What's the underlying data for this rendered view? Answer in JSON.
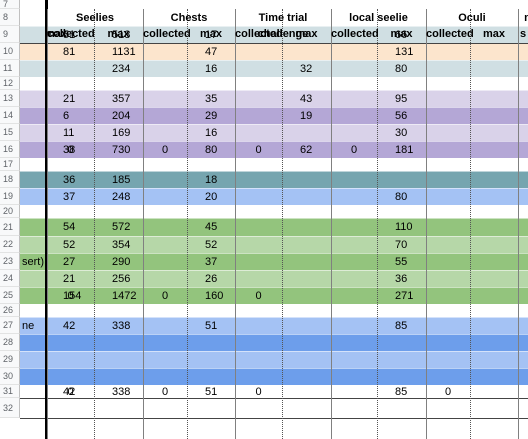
{
  "headers": {
    "groups": [
      "Seelies",
      "Chests",
      "Time trial challenge",
      "local seelie",
      "Oculi",
      "m"
    ],
    "sub": [
      "max",
      "collected",
      "max",
      "collected",
      "max",
      "collected",
      "max",
      "collected",
      "max",
      "collected",
      "max",
      "s"
    ]
  },
  "rows": [
    {
      "num": "7",
      "label": "",
      "color": "#ffffff",
      "cells": {}
    },
    {
      "num": "8",
      "label": "",
      "color": "#ffffff",
      "cells": {}
    },
    {
      "num": "9",
      "label": "",
      "color": "#d0dfe3",
      "cells": {
        "s_max": "51",
        "c_max": "518",
        "t_max": "17",
        "o_max": "66"
      }
    },
    {
      "num": "10",
      "label": "",
      "color": "#fce5cd",
      "cells": {
        "s_max": "81",
        "c_max": "1131",
        "t_max": "47",
        "o_max": "131"
      }
    },
    {
      "num": "11",
      "label": "",
      "color": "#d0dfe3",
      "cells": {
        "s_max": "",
        "c_max": "234",
        "t_max": "16",
        "l_max": "32",
        "o_max": "80"
      }
    },
    {
      "num": "12",
      "label": "",
      "color": "#ffffff",
      "cells": {}
    },
    {
      "num": "13",
      "label": "",
      "color": "#d9d2e9",
      "cells": {
        "s_max": "21",
        "c_max": "357",
        "t_max": "35",
        "l_max": "43",
        "o_max": "95"
      }
    },
    {
      "num": "14",
      "label": "",
      "color": "#b4a7d6",
      "cells": {
        "s_max": "6",
        "c_max": "204",
        "t_max": "29",
        "l_max": "19",
        "o_max": "56"
      }
    },
    {
      "num": "15",
      "label": "",
      "color": "#d9d2e9",
      "cells": {
        "s_max": "11",
        "c_max": "169",
        "t_max": "16",
        "o_max": "30"
      }
    },
    {
      "num": "16",
      "label": "",
      "color": "#b4a7d6",
      "cells": {
        "s_max": "38",
        "s_col": "0",
        "c_max": "730",
        "c_col": "0",
        "t_max": "80",
        "t_col": "0",
        "l_max": "62",
        "l_col": "0",
        "o_max": "181"
      }
    },
    {
      "num": "17",
      "label": "",
      "color": "#ffffff",
      "cells": {}
    },
    {
      "num": "18",
      "label": "",
      "color": "#76a5af",
      "cells": {
        "s_max": "36",
        "c_max": "185",
        "t_max": "18"
      }
    },
    {
      "num": "19",
      "label": "",
      "color": "#a4c2f4",
      "cells": {
        "s_max": "37",
        "c_max": "248",
        "t_max": "20",
        "o_max": "80"
      }
    },
    {
      "num": "20",
      "label": "",
      "color": "#ffffff",
      "cells": {}
    },
    {
      "num": "21",
      "label": "",
      "color": "#93c47d",
      "cells": {
        "s_max": "54",
        "c_max": "572",
        "t_max": "45",
        "o_max": "110"
      }
    },
    {
      "num": "22",
      "label": "",
      "color": "#b6d7a8",
      "cells": {
        "s_max": "52",
        "c_max": "354",
        "t_max": "52",
        "o_max": "70"
      }
    },
    {
      "num": "23",
      "label": "sert)",
      "color": "#93c47d",
      "cells": {
        "s_max": "27",
        "c_max": "290",
        "t_max": "37",
        "o_max": "55"
      }
    },
    {
      "num": "24",
      "label": "",
      "color": "#b6d7a8",
      "cells": {
        "s_max": "21",
        "c_max": "256",
        "t_max": "26",
        "o_max": "36"
      }
    },
    {
      "num": "25",
      "label": "",
      "color": "#93c47d",
      "cells": {
        "s_max": "154",
        "s_col": "0",
        "c_max": "1472",
        "c_col": "0",
        "t_max": "160",
        "t_col": "0",
        "o_max": "271"
      }
    },
    {
      "num": "26",
      "label": "",
      "color": "#ffffff",
      "cells": {}
    },
    {
      "num": "27",
      "label": "ne",
      "color": "#a4c2f4",
      "cells": {
        "s_max": "42",
        "c_max": "338",
        "t_max": "51",
        "o_max": "85"
      }
    },
    {
      "num": "28",
      "label": "",
      "color": "#6d9eeb",
      "cells": {}
    },
    {
      "num": "29",
      "label": "",
      "color": "#a4c2f4",
      "cells": {}
    },
    {
      "num": "30",
      "label": "",
      "color": "#6d9eeb",
      "cells": {}
    },
    {
      "num": "31",
      "label": "",
      "color": "#ffffff",
      "cells": {
        "s_max": "42",
        "s_col": "0",
        "c_max": "338",
        "c_col": "0",
        "t_max": "51",
        "t_col": "0",
        "o_max": "85",
        "o_col": "0"
      }
    },
    {
      "num": "32",
      "label": "",
      "color": "#ffffff",
      "cells": {}
    }
  ]
}
